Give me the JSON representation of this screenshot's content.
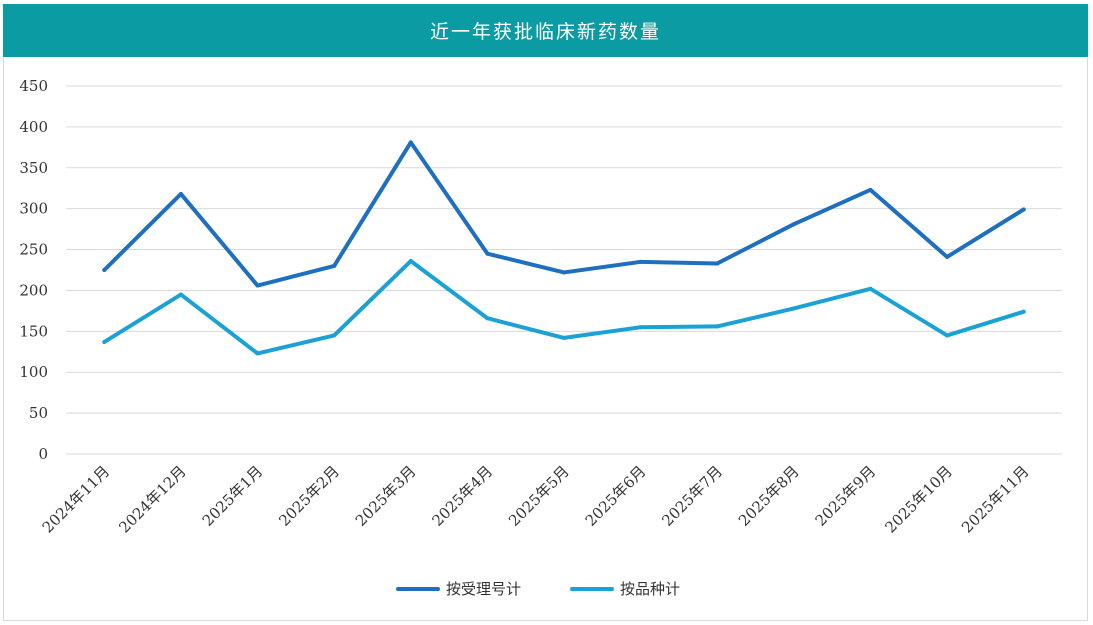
{
  "chart_data": {
    "type": "line",
    "title": "近一年获批临床新药数量",
    "categories": [
      "2024年11月",
      "2024年12月",
      "2025年1月",
      "2025年2月",
      "2025年3月",
      "2025年4月",
      "2025年5月",
      "2025年6月",
      "2025年7月",
      "2025年8月",
      "2025年9月",
      "2025年10月",
      "2025年11月"
    ],
    "series": [
      {
        "name": "按受理号计",
        "color": "#1e6fbf",
        "values": [
          225,
          318,
          206,
          230,
          381,
          245,
          222,
          235,
          233,
          281,
          323,
          241,
          299
        ]
      },
      {
        "name": "按品种计",
        "color": "#1aa1d6",
        "values": [
          137,
          195,
          123,
          145,
          236,
          166,
          142,
          155,
          156,
          178,
          202,
          145,
          174
        ]
      }
    ],
    "ylim": [
      0,
      450
    ],
    "yticks": [
      0,
      50,
      100,
      150,
      200,
      250,
      300,
      350,
      400,
      450
    ],
    "grid": true,
    "legend": "bottom-center"
  }
}
